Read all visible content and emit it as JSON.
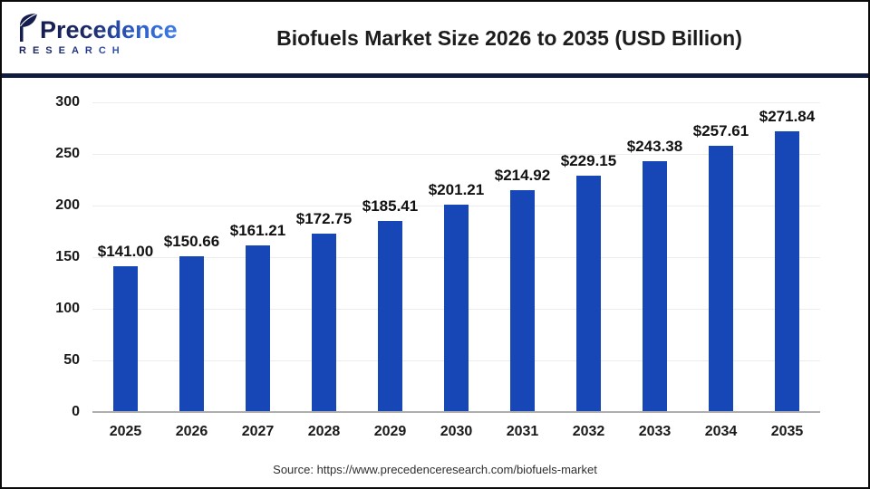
{
  "header": {
    "logo": {
      "name": "Precedence",
      "sub": "RESEARCH"
    },
    "title": "Biofuels Market Size 2026 to 2035 (USD Billion)"
  },
  "chart_data": {
    "type": "bar",
    "title": "Biofuels Market Size 2026 to 2035 (USD Billion)",
    "categories": [
      "2025",
      "2026",
      "2027",
      "2028",
      "2029",
      "2030",
      "2031",
      "2032",
      "2033",
      "2034",
      "2035"
    ],
    "values": [
      141.0,
      150.66,
      161.21,
      172.75,
      185.41,
      201.21,
      214.92,
      229.15,
      243.38,
      257.61,
      271.84
    ],
    "value_labels": [
      "$141.00",
      "$150.66",
      "$161.21",
      "$172.75",
      "$185.41",
      "$201.21",
      "$214.92",
      "$229.15",
      "$243.38",
      "$257.61",
      "$271.84"
    ],
    "y_ticks": [
      0,
      50,
      100,
      150,
      200,
      250,
      300
    ],
    "ylim": [
      0,
      300
    ],
    "xlabel": "",
    "ylabel": "",
    "grid": true,
    "legend_position": "none",
    "bar_color": "#1747b6",
    "grid_color": "#ececec",
    "baseline_color": "#aeaeae"
  },
  "footer": {
    "source": "Source: https://www.precedenceresearch.com/biofuels-market"
  }
}
